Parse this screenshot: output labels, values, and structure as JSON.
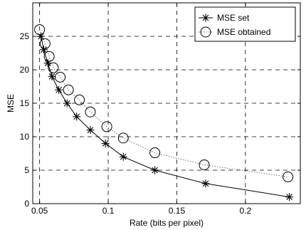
{
  "chart_data": {
    "type": "line",
    "title": "",
    "xlabel": "Rate (bits per pixel)",
    "ylabel": "MSE",
    "xlim": [
      0.045,
      0.24
    ],
    "ylim": [
      0,
      30
    ],
    "xticks": [
      0.05,
      0.1,
      0.15,
      0.2
    ],
    "xtick_labels": [
      "0.05",
      "0.1",
      "0.15",
      "0.2"
    ],
    "yticks": [
      0,
      5,
      10,
      15,
      20,
      25
    ],
    "ytick_labels": [
      "0",
      "5",
      "10",
      "15",
      "20",
      "25"
    ],
    "grid": true,
    "grid_style": "dashed",
    "legend_position": "top-right",
    "series": [
      {
        "name": "MSE set",
        "color": "#000000",
        "line_style": "solid",
        "marker": "asterisk",
        "points": [
          {
            "x": 0.051,
            "y": 25
          },
          {
            "x": 0.053,
            "y": 23
          },
          {
            "x": 0.056,
            "y": 21
          },
          {
            "x": 0.059,
            "y": 19
          },
          {
            "x": 0.064,
            "y": 17
          },
          {
            "x": 0.07,
            "y": 15
          },
          {
            "x": 0.077,
            "y": 13
          },
          {
            "x": 0.087,
            "y": 11
          },
          {
            "x": 0.098,
            "y": 9
          },
          {
            "x": 0.111,
            "y": 7
          },
          {
            "x": 0.134,
            "y": 5
          },
          {
            "x": 0.171,
            "y": 3
          },
          {
            "x": 0.232,
            "y": 1
          }
        ]
      },
      {
        "name": "MSE obtained",
        "color": "#707070",
        "line_style": "dotted",
        "marker": "circle",
        "points": [
          {
            "x": 0.05,
            "y": 26
          },
          {
            "x": 0.054,
            "y": 23.9
          },
          {
            "x": 0.057,
            "y": 22
          },
          {
            "x": 0.06,
            "y": 20.3
          },
          {
            "x": 0.065,
            "y": 18.9
          },
          {
            "x": 0.071,
            "y": 17
          },
          {
            "x": 0.079,
            "y": 15.5
          },
          {
            "x": 0.087,
            "y": 13.7
          },
          {
            "x": 0.099,
            "y": 11.5
          },
          {
            "x": 0.111,
            "y": 9.8
          },
          {
            "x": 0.134,
            "y": 7.6
          },
          {
            "x": 0.17,
            "y": 5.8
          },
          {
            "x": 0.231,
            "y": 4
          }
        ]
      }
    ]
  }
}
